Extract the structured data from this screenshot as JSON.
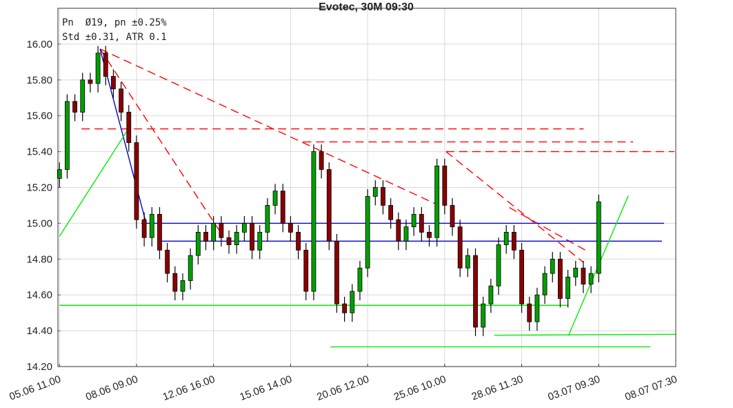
{
  "chart_data": {
    "type": "candlestick",
    "title": "Evotec, 30M 09:30",
    "annotations": [
      "Pn  Ø19, pn ±0.25%",
      "Std ±0.31, ATR 0.1"
    ],
    "xlim": [
      -0.02,
      8.0
    ],
    "ylim": [
      14.2,
      16.2
    ],
    "xticks": [
      {
        "value": 0,
        "label": "05.06 11.00"
      },
      {
        "value": 1,
        "label": "08.06 09.00"
      },
      {
        "value": 2,
        "label": "12.06 16.00"
      },
      {
        "value": 3,
        "label": "15.06 14.00"
      },
      {
        "value": 4,
        "label": "20.06 12.00"
      },
      {
        "value": 5,
        "label": "25.06 10.00"
      },
      {
        "value": 6,
        "label": "28.06 11.30"
      },
      {
        "value": 7,
        "label": "03.07 09.30"
      },
      {
        "value": 8,
        "label": "08.07 07.30"
      }
    ],
    "yticks": [
      {
        "value": 14.2,
        "label": "14.20"
      },
      {
        "value": 14.4,
        "label": "14.40"
      },
      {
        "value": 14.6,
        "label": "14.60"
      },
      {
        "value": 14.8,
        "label": "14.80"
      },
      {
        "value": 15.0,
        "label": "15.00"
      },
      {
        "value": 15.2,
        "label": "15.20"
      },
      {
        "value": 15.4,
        "label": "15.40"
      },
      {
        "value": 15.6,
        "label": "15.60"
      },
      {
        "value": 15.8,
        "label": "15.80"
      },
      {
        "value": 16.0,
        "label": "16.00"
      }
    ],
    "grid": true,
    "up_color": "#00a000",
    "down_color": "#8b0000",
    "x": [
      0,
      0.1,
      0.2,
      0.3,
      0.4,
      0.5,
      0.6,
      0.7,
      0.8,
      0.9,
      1,
      1.1,
      1.2,
      1.3,
      1.4,
      1.5,
      1.6,
      1.7,
      1.8,
      1.9,
      2,
      2.1,
      2.2,
      2.3,
      2.4,
      2.5,
      2.6,
      2.7,
      2.8,
      2.9,
      3,
      3.1,
      3.2,
      3.3,
      3.4,
      3.5,
      3.6,
      3.7,
      3.8,
      3.9,
      4,
      4.1,
      4.2,
      4.3,
      4.4,
      4.5,
      4.6,
      4.7,
      4.8,
      4.9,
      5,
      5.1,
      5.2,
      5.3,
      5.4,
      5.5,
      5.6,
      5.7,
      5.8,
      5.9,
      6,
      6.1,
      6.2,
      6.3,
      6.4,
      6.5,
      6.6,
      6.7,
      6.8,
      6.9,
      7
    ],
    "open": [
      15.25,
      15.3,
      15.68,
      15.62,
      15.8,
      15.78,
      15.95,
      15.82,
      15.75,
      15.62,
      15.45,
      15.02,
      14.92,
      15.05,
      14.85,
      14.72,
      14.62,
      14.68,
      14.82,
      14.95,
      14.9,
      15.0,
      14.92,
      14.88,
      14.95,
      15.0,
      14.85,
      14.95,
      15.1,
      15.18,
      15.0,
      14.95,
      14.85,
      14.62,
      15.4,
      15.3,
      14.9,
      14.55,
      14.5,
      14.62,
      14.75,
      15.15,
      15.2,
      15.1,
      15.02,
      14.9,
      14.98,
      15.05,
      14.95,
      14.92,
      15.32,
      15.1,
      14.98,
      14.75,
      14.82,
      14.42,
      14.55,
      14.65,
      14.88,
      14.95,
      14.85,
      14.55,
      14.45,
      14.6,
      14.72,
      14.8,
      14.58,
      14.7,
      14.75,
      14.66,
      14.72
    ],
    "high": [
      15.34,
      15.72,
      15.72,
      15.84,
      15.84,
      15.99,
      15.99,
      15.86,
      15.79,
      15.66,
      15.49,
      15.06,
      15.09,
      15.09,
      14.89,
      14.76,
      14.72,
      14.86,
      14.99,
      14.99,
      15.04,
      15.04,
      14.96,
      14.99,
      15.04,
      15.04,
      14.99,
      15.14,
      15.22,
      15.22,
      15.04,
      14.99,
      14.89,
      15.44,
      15.44,
      15.34,
      14.94,
      14.59,
      14.66,
      14.79,
      15.19,
      15.24,
      15.24,
      15.14,
      15.06,
      15.02,
      15.09,
      15.09,
      14.99,
      15.36,
      15.36,
      15.14,
      15.02,
      14.86,
      14.86,
      14.59,
      14.69,
      14.92,
      14.99,
      14.99,
      14.89,
      14.59,
      14.64,
      14.76,
      14.84,
      14.84,
      14.74,
      14.79,
      14.79,
      14.76,
      15.16
    ],
    "low": [
      15.2,
      15.25,
      15.57,
      15.57,
      15.73,
      15.73,
      15.77,
      15.7,
      15.57,
      15.4,
      14.97,
      14.87,
      14.87,
      14.8,
      14.67,
      14.57,
      14.57,
      14.63,
      14.77,
      14.85,
      14.85,
      14.87,
      14.83,
      14.83,
      14.9,
      14.8,
      14.8,
      14.9,
      15.05,
      14.95,
      14.9,
      14.8,
      14.57,
      14.57,
      15.25,
      14.85,
      14.5,
      14.45,
      14.45,
      14.57,
      14.7,
      15.1,
      15.05,
      14.97,
      14.85,
      14.85,
      14.93,
      14.9,
      14.87,
      14.87,
      15.05,
      14.93,
      14.7,
      14.7,
      14.37,
      14.37,
      14.5,
      14.6,
      14.83,
      14.8,
      14.5,
      14.4,
      14.4,
      14.55,
      14.67,
      14.53,
      14.53,
      14.65,
      14.61,
      14.61,
      14.67
    ],
    "close": [
      15.3,
      15.68,
      15.62,
      15.8,
      15.78,
      15.95,
      15.82,
      15.75,
      15.62,
      15.45,
      15.02,
      14.92,
      15.05,
      14.85,
      14.72,
      14.62,
      14.68,
      14.82,
      14.95,
      14.9,
      15.0,
      14.92,
      14.88,
      14.95,
      15.0,
      14.85,
      14.95,
      15.1,
      15.18,
      15.0,
      14.95,
      14.85,
      14.62,
      15.4,
      15.3,
      14.9,
      14.55,
      14.5,
      14.62,
      14.75,
      15.15,
      15.2,
      15.1,
      15.02,
      14.9,
      14.98,
      15.05,
      14.95,
      14.92,
      15.32,
      15.1,
      14.98,
      14.75,
      14.82,
      14.42,
      14.55,
      14.65,
      14.88,
      14.95,
      14.85,
      14.55,
      14.45,
      14.6,
      14.72,
      14.8,
      14.58,
      14.7,
      14.75,
      14.66,
      14.72,
      15.12
    ],
    "trendlines": [
      {
        "color": "#ff0000",
        "dashed": true,
        "x": [
          0.527,
          2.071
        ],
        "y": [
          15.973,
          14.962
        ]
      },
      {
        "color": "#ff0000",
        "dashed": true,
        "x": [
          0.527,
          4.884
        ],
        "y": [
          15.973,
          15.108
        ]
      },
      {
        "color": "#ff0000",
        "dashed": true,
        "x": [
          0.286,
          6.804
        ],
        "y": [
          15.527,
          15.527
        ]
      },
      {
        "color": "#ff0000",
        "dashed": true,
        "x": [
          3.161,
          7.446
        ],
        "y": [
          15.454,
          15.454
        ]
      },
      {
        "color": "#ff0000",
        "dashed": true,
        "x": [
          5.018,
          7.982
        ],
        "y": [
          15.4,
          15.4
        ]
      },
      {
        "color": "#ff0000",
        "dashed": true,
        "x": [
          5.018,
          6.804
        ],
        "y": [
          15.4,
          14.781
        ]
      },
      {
        "color": "#ff0000",
        "dashed": true,
        "x": [
          5.839,
          6.875
        ],
        "y": [
          15.088,
          14.838
        ]
      },
      {
        "color": "#0000cc",
        "dashed": false,
        "x": [
          0.527,
          1.125
        ],
        "y": [
          15.973,
          15.0
        ]
      },
      {
        "color": "#0000cc",
        "dashed": false,
        "x": [
          1.063,
          7.848
        ],
        "y": [
          15.0,
          15.0
        ]
      },
      {
        "color": "#0000cc",
        "dashed": false,
        "x": [
          1.321,
          7.821
        ],
        "y": [
          14.9,
          14.9
        ]
      },
      {
        "color": "#00ee00",
        "dashed": false,
        "x": [
          0,
          0.929
        ],
        "y": [
          14.927,
          15.55
        ]
      },
      {
        "color": "#00ee00",
        "dashed": false,
        "x": [
          0,
          6.607
        ],
        "y": [
          14.542,
          14.542
        ]
      },
      {
        "color": "#00ee00",
        "dashed": false,
        "x": [
          3.518,
          7.67
        ],
        "y": [
          14.31,
          14.31
        ]
      },
      {
        "color": "#00ee00",
        "dashed": false,
        "x": [
          5.643,
          8.0
        ],
        "y": [
          14.375,
          14.38
        ]
      },
      {
        "color": "#00ee00",
        "dashed": false,
        "x": [
          6.607,
          7.384
        ],
        "y": [
          14.373,
          15.154
        ]
      }
    ]
  }
}
